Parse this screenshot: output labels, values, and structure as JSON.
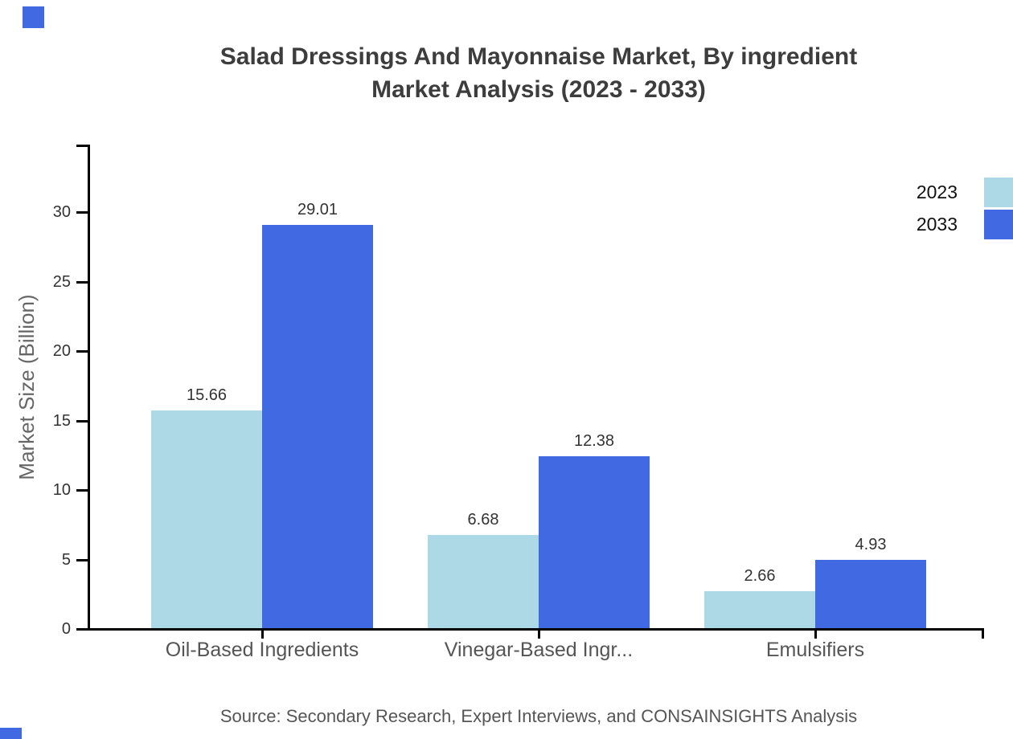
{
  "title": {
    "line1": "Salad Dressings And Mayonnaise Market, By ingredient",
    "line2": "Market Analysis (2023 - 2033)"
  },
  "y_axis": {
    "label": "Market Size (Billion)",
    "ticks": [
      0,
      5,
      10,
      15,
      20,
      25,
      30
    ]
  },
  "legend": [
    {
      "label": "2023",
      "color": "#ADD8E6"
    },
    {
      "label": "2033",
      "color": "#4169E1"
    }
  ],
  "source": "Source: Secondary Research, Expert Interviews, and CONSAINSIGHTS Analysis",
  "colors": {
    "series_2023": "#ADD8E6",
    "series_2033": "#4169E1",
    "axis": "#000000",
    "title_text": "#3d3d3d",
    "tick_text": "#333333",
    "category_text": "#555555",
    "accent": "#4169E1"
  },
  "chart_data": {
    "type": "bar",
    "categories": [
      "Oil-Based Ingredients",
      "Vinegar-Based Ingr...",
      "Emulsifiers"
    ],
    "series": [
      {
        "name": "2023",
        "color": "#ADD8E6",
        "values": [
          15.66,
          6.68,
          2.66
        ]
      },
      {
        "name": "2033",
        "color": "#4169E1",
        "values": [
          29.01,
          12.38,
          4.93
        ]
      }
    ],
    "title": "Salad Dressings And Mayonnaise Market, By ingredient Market Analysis (2023 - 2033)",
    "xlabel": "",
    "ylabel": "Market Size (Billion)",
    "ylim": [
      0,
      34.8
    ],
    "grid": false,
    "legend_position": "top-right",
    "value_labels": true
  }
}
